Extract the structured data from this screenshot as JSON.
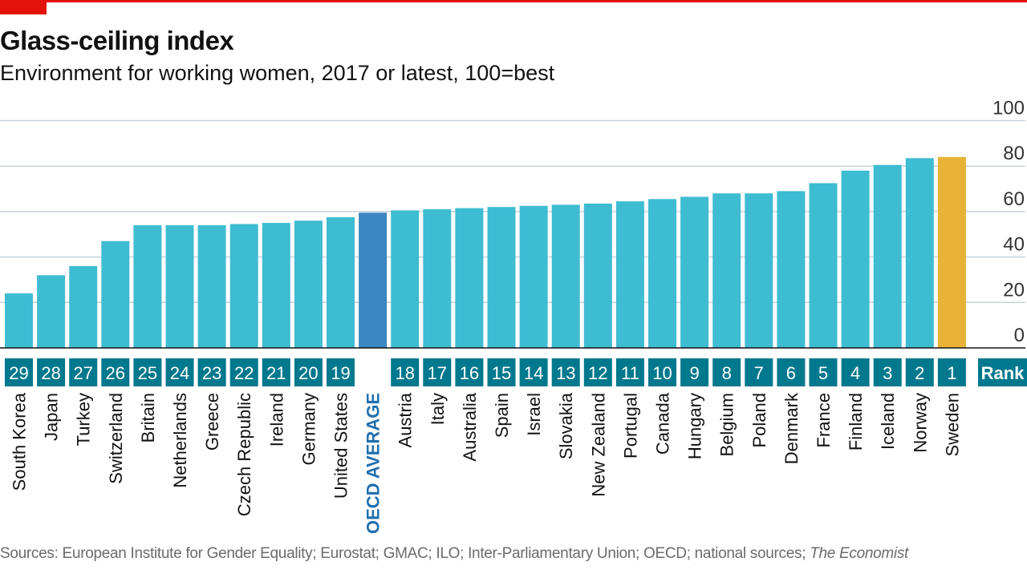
{
  "header": {
    "title": "Glass-ceiling index",
    "subtitle": "Environment for working women, 2017 or latest, 100=best"
  },
  "footer": {
    "source": "Sources: European Institute for Gender Equality; Eurostat; GMAC; ILO; Inter-Parliamentary Union; OECD; national sources;",
    "source_publication": "The Economist"
  },
  "colors": {
    "bar": "#3ebcd2",
    "average_bar": "#3a87c3",
    "top_bar": "#e8b237",
    "rank_box": "#00788d",
    "average_label": "#1f6fae",
    "brand_red": "#e3120b"
  },
  "chart_data": {
    "type": "bar",
    "title": "Glass-ceiling index",
    "subtitle": "Environment for working women, 2017 or latest, 100=best",
    "ylim": [
      0,
      100
    ],
    "yticks": [
      0,
      20,
      40,
      60,
      80,
      100
    ],
    "grid": true,
    "rank_label": "Rank",
    "categories": [
      "South Korea",
      "Japan",
      "Turkey",
      "Switzerland",
      "Britain",
      "Netherlands",
      "Greece",
      "Czech Republic",
      "Ireland",
      "Germany",
      "United States",
      "OECD AVERAGE",
      "Austria",
      "Italy",
      "Australia",
      "Spain",
      "Israel",
      "Slovakia",
      "New Zealand",
      "Portugal",
      "Canada",
      "Hungary",
      "Belgium",
      "Poland",
      "Denmark",
      "France",
      "Finland",
      "Iceland",
      "Norway",
      "Sweden"
    ],
    "values": [
      24,
      32,
      36,
      47,
      54,
      54,
      54,
      54.5,
      55,
      56,
      57.5,
      59.5,
      60.5,
      61,
      61.5,
      62,
      62.5,
      63,
      63.5,
      64.5,
      65.5,
      66.5,
      68,
      68,
      69,
      72.5,
      78,
      80.5,
      83.5,
      84
    ],
    "ranks": [
      "29",
      "28",
      "27",
      "26",
      "25",
      "24",
      "23",
      "22",
      "21",
      "20",
      "19",
      "",
      "18",
      "17",
      "16",
      "15",
      "14",
      "13",
      "12",
      "11",
      "10",
      "9",
      "8",
      "7",
      "6",
      "5",
      "4",
      "3",
      "2",
      "1"
    ],
    "highlight": {
      "average": "OECD AVERAGE",
      "top": "Sweden"
    }
  }
}
